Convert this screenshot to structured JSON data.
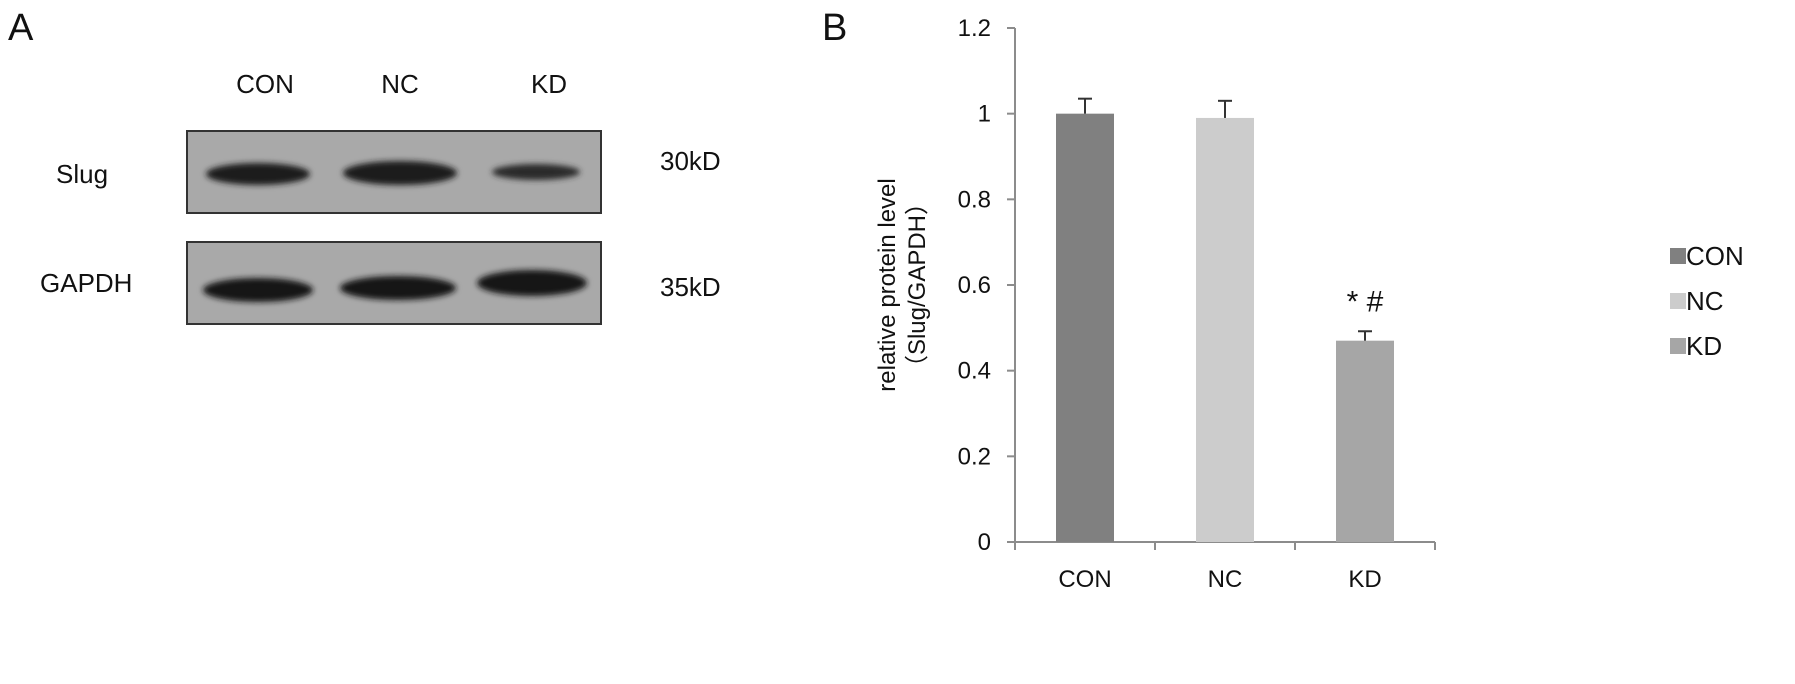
{
  "panels": {
    "a_label": "A",
    "b_label": "B"
  },
  "western_blot": {
    "lane_labels": [
      "CON",
      "NC",
      "KD"
    ],
    "rows": [
      {
        "protein": "Slug",
        "size": "30kD"
      },
      {
        "protein": "GAPDH",
        "size": "35kD"
      }
    ]
  },
  "chart_data": {
    "type": "bar",
    "categories": [
      "CON",
      "NC",
      "KD"
    ],
    "values": [
      1.0,
      0.99,
      0.47
    ],
    "errors": [
      0.035,
      0.04,
      0.022
    ],
    "colors": [
      "#808080",
      "#cccccc",
      "#a6a6a6"
    ],
    "ylabel_line1": "relative protein level",
    "ylabel_line2": "（Slug/GAPDH）",
    "xlabel": "",
    "ylim": [
      0,
      1.2
    ],
    "yticks": [
      "0",
      "0.2",
      "0.4",
      "0.6",
      "0.8",
      "1",
      "1.2"
    ],
    "legend": [
      "CON",
      "NC",
      "KD"
    ],
    "legend_position": "right",
    "annotations": [
      {
        "category": "KD",
        "text": "* #"
      }
    ],
    "grid": false
  }
}
